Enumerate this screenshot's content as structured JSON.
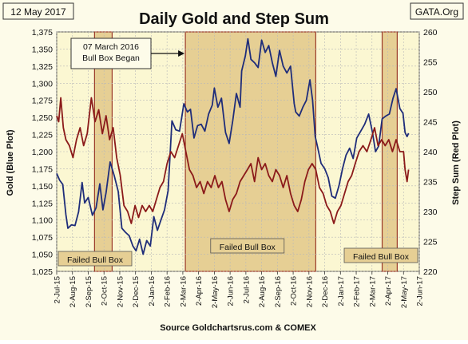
{
  "header": {
    "date": "12 May 2017",
    "title": "Daily Gold and Step Sum",
    "source_tag": "GATA.Org"
  },
  "footer": {
    "source": "Source Goldchartsrus.com & COMEX"
  },
  "colors": {
    "gold": "#1f2d7a",
    "step_sum": "#8b1a1a",
    "box_fill": "#e6cf94",
    "box_border": "#9b3a2a",
    "plot_bg": "#fbf7d2",
    "page_bg": "#fdfbe9"
  },
  "chart_data": {
    "type": "line",
    "title": "Daily Gold and Step Sum",
    "ylabel_left": "Gold (Blue Plot)",
    "ylabel_right": "Step Sum (Red Plot)",
    "ylim_left": [
      1025,
      1375
    ],
    "ylim_right": [
      220,
      260
    ],
    "yticks_left": [
      "1,025",
      "1,050",
      "1,075",
      "1,100",
      "1,125",
      "1,150",
      "1,175",
      "1,200",
      "1,225",
      "1,250",
      "1,275",
      "1,300",
      "1,325",
      "1,350",
      "1,375"
    ],
    "yticks_right": [
      "220",
      "225",
      "230",
      "235",
      "240",
      "245",
      "250",
      "255",
      "260"
    ],
    "xticks": [
      "2-Jul-15",
      "2-Aug-15",
      "2-Sep-15",
      "2-Oct-15",
      "2-Nov-15",
      "2-Dec-15",
      "2-Jan-16",
      "2-Feb-16",
      "2-Mar-16",
      "2-Apr-16",
      "2-May-16",
      "2-Jun-16",
      "2-Jul-16",
      "2-Aug-16",
      "2-Sep-16",
      "2-Oct-16",
      "2-Nov-16",
      "2-Dec-16",
      "2-Jan-17",
      "2-Feb-17",
      "2-Mar-17",
      "2-Apr-17",
      "2-May-17",
      "2-Jun-17"
    ],
    "grid": true,
    "boxes": [
      {
        "label": "Failed Bull Box",
        "start": "2015-09-14",
        "end": "2015-10-18"
      },
      {
        "label": "Failed Bull Box",
        "start": "2016-03-07",
        "end": "2016-11-15"
      },
      {
        "label": "Failed Bull Box",
        "start": "2017-03-22",
        "end": "2017-04-20"
      }
    ],
    "annotation": {
      "text_lines": [
        "07 March 2016",
        "Bull Box Began"
      ],
      "date": "2016-03-07"
    },
    "series": [
      {
        "name": "Gold",
        "axis": "left",
        "points": [
          [
            "2015-07-02",
            1168
          ],
          [
            "2015-07-08",
            1158
          ],
          [
            "2015-07-14",
            1152
          ],
          [
            "2015-07-20",
            1108
          ],
          [
            "2015-07-24",
            1088
          ],
          [
            "2015-07-31",
            1093
          ],
          [
            "2015-08-07",
            1092
          ],
          [
            "2015-08-14",
            1112
          ],
          [
            "2015-08-21",
            1155
          ],
          [
            "2015-08-26",
            1125
          ],
          [
            "2015-09-02",
            1133
          ],
          [
            "2015-09-10",
            1107
          ],
          [
            "2015-09-17",
            1118
          ],
          [
            "2015-09-24",
            1153
          ],
          [
            "2015-09-30",
            1115
          ],
          [
            "2015-10-06",
            1140
          ],
          [
            "2015-10-14",
            1185
          ],
          [
            "2015-10-22",
            1165
          ],
          [
            "2015-10-30",
            1142
          ],
          [
            "2015-11-06",
            1088
          ],
          [
            "2015-11-13",
            1082
          ],
          [
            "2015-11-20",
            1077
          ],
          [
            "2015-11-27",
            1062
          ],
          [
            "2015-12-03",
            1055
          ],
          [
            "2015-12-10",
            1072
          ],
          [
            "2015-12-17",
            1050
          ],
          [
            "2015-12-24",
            1070
          ],
          [
            "2015-12-31",
            1062
          ],
          [
            "2016-01-07",
            1105
          ],
          [
            "2016-01-14",
            1085
          ],
          [
            "2016-01-21",
            1100
          ],
          [
            "2016-01-28",
            1115
          ],
          [
            "2016-02-04",
            1143
          ],
          [
            "2016-02-11",
            1245
          ],
          [
            "2016-02-18",
            1232
          ],
          [
            "2016-02-25",
            1230
          ],
          [
            "2016-03-04",
            1270
          ],
          [
            "2016-03-11",
            1258
          ],
          [
            "2016-03-17",
            1262
          ],
          [
            "2016-03-24",
            1220
          ],
          [
            "2016-03-31",
            1238
          ],
          [
            "2016-04-07",
            1240
          ],
          [
            "2016-04-14",
            1230
          ],
          [
            "2016-04-21",
            1255
          ],
          [
            "2016-04-28",
            1268
          ],
          [
            "2016-05-02",
            1293
          ],
          [
            "2016-05-09",
            1265
          ],
          [
            "2016-05-16",
            1278
          ],
          [
            "2016-05-24",
            1228
          ],
          [
            "2016-05-31",
            1212
          ],
          [
            "2016-06-07",
            1245
          ],
          [
            "2016-06-14",
            1285
          ],
          [
            "2016-06-21",
            1265
          ],
          [
            "2016-06-24",
            1318
          ],
          [
            "2016-07-01",
            1340
          ],
          [
            "2016-07-06",
            1365
          ],
          [
            "2016-07-12",
            1335
          ],
          [
            "2016-07-19",
            1330
          ],
          [
            "2016-07-26",
            1323
          ],
          [
            "2016-08-02",
            1363
          ],
          [
            "2016-08-09",
            1345
          ],
          [
            "2016-08-16",
            1355
          ],
          [
            "2016-08-23",
            1330
          ],
          [
            "2016-08-30",
            1310
          ],
          [
            "2016-09-06",
            1348
          ],
          [
            "2016-09-13",
            1325
          ],
          [
            "2016-09-20",
            1315
          ],
          [
            "2016-09-27",
            1325
          ],
          [
            "2016-10-04",
            1270
          ],
          [
            "2016-10-07",
            1258
          ],
          [
            "2016-10-14",
            1252
          ],
          [
            "2016-10-21",
            1265
          ],
          [
            "2016-10-28",
            1275
          ],
          [
            "2016-11-04",
            1305
          ],
          [
            "2016-11-09",
            1275
          ],
          [
            "2016-11-14",
            1222
          ],
          [
            "2016-11-18",
            1208
          ],
          [
            "2016-11-25",
            1183
          ],
          [
            "2016-12-02",
            1175
          ],
          [
            "2016-12-09",
            1162
          ],
          [
            "2016-12-16",
            1135
          ],
          [
            "2016-12-23",
            1132
          ],
          [
            "2016-12-30",
            1150
          ],
          [
            "2017-01-06",
            1175
          ],
          [
            "2017-01-13",
            1195
          ],
          [
            "2017-01-20",
            1205
          ],
          [
            "2017-01-27",
            1190
          ],
          [
            "2017-02-03",
            1220
          ],
          [
            "2017-02-10",
            1230
          ],
          [
            "2017-02-17",
            1240
          ],
          [
            "2017-02-24",
            1255
          ],
          [
            "2017-03-03",
            1228
          ],
          [
            "2017-03-09",
            1200
          ],
          [
            "2017-03-15",
            1208
          ],
          [
            "2017-03-22",
            1248
          ],
          [
            "2017-03-29",
            1252
          ],
          [
            "2017-04-05",
            1255
          ],
          [
            "2017-04-12",
            1278
          ],
          [
            "2017-04-18",
            1292
          ],
          [
            "2017-04-25",
            1263
          ],
          [
            "2017-05-01",
            1256
          ],
          [
            "2017-05-05",
            1228
          ],
          [
            "2017-05-09",
            1222
          ],
          [
            "2017-05-12",
            1227
          ]
        ]
      },
      {
        "name": "Step Sum",
        "axis": "right",
        "points": [
          [
            "2015-07-02",
            246
          ],
          [
            "2015-07-06",
            245
          ],
          [
            "2015-07-10",
            249
          ],
          [
            "2015-07-15",
            244
          ],
          [
            "2015-07-20",
            242
          ],
          [
            "2015-07-27",
            241
          ],
          [
            "2015-08-03",
            239
          ],
          [
            "2015-08-10",
            242
          ],
          [
            "2015-08-17",
            244
          ],
          [
            "2015-08-24",
            241
          ],
          [
            "2015-08-31",
            243
          ],
          [
            "2015-09-08",
            249
          ],
          [
            "2015-09-15",
            245
          ],
          [
            "2015-09-22",
            247
          ],
          [
            "2015-09-29",
            243
          ],
          [
            "2015-10-06",
            246
          ],
          [
            "2015-10-13",
            242
          ],
          [
            "2015-10-20",
            244
          ],
          [
            "2015-10-27",
            239
          ],
          [
            "2015-11-03",
            236
          ],
          [
            "2015-11-10",
            231
          ],
          [
            "2015-11-17",
            230
          ],
          [
            "2015-11-24",
            228
          ],
          [
            "2015-12-01",
            231
          ],
          [
            "2015-12-08",
            229
          ],
          [
            "2015-12-15",
            231
          ],
          [
            "2015-12-22",
            230
          ],
          [
            "2015-12-29",
            231
          ],
          [
            "2016-01-05",
            230
          ],
          [
            "2016-01-12",
            232
          ],
          [
            "2016-01-19",
            234
          ],
          [
            "2016-01-26",
            235
          ],
          [
            "2016-02-02",
            238
          ],
          [
            "2016-02-09",
            240
          ],
          [
            "2016-02-16",
            239
          ],
          [
            "2016-02-23",
            241
          ],
          [
            "2016-03-01",
            243
          ],
          [
            "2016-03-08",
            240
          ],
          [
            "2016-03-15",
            237
          ],
          [
            "2016-03-22",
            236
          ],
          [
            "2016-03-29",
            234
          ],
          [
            "2016-04-05",
            235
          ],
          [
            "2016-04-12",
            233
          ],
          [
            "2016-04-19",
            235
          ],
          [
            "2016-04-26",
            234
          ],
          [
            "2016-05-03",
            236
          ],
          [
            "2016-05-10",
            234
          ],
          [
            "2016-05-17",
            235
          ],
          [
            "2016-05-24",
            232
          ],
          [
            "2016-05-31",
            230
          ],
          [
            "2016-06-07",
            232
          ],
          [
            "2016-06-14",
            233
          ],
          [
            "2016-06-21",
            235
          ],
          [
            "2016-06-28",
            236
          ],
          [
            "2016-07-05",
            237
          ],
          [
            "2016-07-12",
            238
          ],
          [
            "2016-07-19",
            235
          ],
          [
            "2016-07-26",
            239
          ],
          [
            "2016-08-02",
            237
          ],
          [
            "2016-08-09",
            238
          ],
          [
            "2016-08-16",
            236
          ],
          [
            "2016-08-23",
            235
          ],
          [
            "2016-08-30",
            237
          ],
          [
            "2016-09-06",
            236
          ],
          [
            "2016-09-13",
            234
          ],
          [
            "2016-09-20",
            236
          ],
          [
            "2016-09-27",
            233
          ],
          [
            "2016-10-04",
            231
          ],
          [
            "2016-10-11",
            230
          ],
          [
            "2016-10-18",
            232
          ],
          [
            "2016-10-25",
            235
          ],
          [
            "2016-11-01",
            237
          ],
          [
            "2016-11-08",
            238
          ],
          [
            "2016-11-15",
            237
          ],
          [
            "2016-11-22",
            234
          ],
          [
            "2016-11-29",
            233
          ],
          [
            "2016-12-06",
            231
          ],
          [
            "2016-12-13",
            230
          ],
          [
            "2016-12-20",
            228
          ],
          [
            "2016-12-27",
            230
          ],
          [
            "2017-01-03",
            231
          ],
          [
            "2017-01-10",
            233
          ],
          [
            "2017-01-17",
            235
          ],
          [
            "2017-01-24",
            236
          ],
          [
            "2017-01-31",
            238
          ],
          [
            "2017-02-07",
            240
          ],
          [
            "2017-02-14",
            241
          ],
          [
            "2017-02-21",
            240
          ],
          [
            "2017-02-28",
            242
          ],
          [
            "2017-03-07",
            244
          ],
          [
            "2017-03-14",
            241
          ],
          [
            "2017-03-21",
            242
          ],
          [
            "2017-03-28",
            241
          ],
          [
            "2017-04-04",
            242
          ],
          [
            "2017-04-11",
            240
          ],
          [
            "2017-04-18",
            242
          ],
          [
            "2017-04-25",
            240
          ],
          [
            "2017-05-02",
            240
          ],
          [
            "2017-05-05",
            237
          ],
          [
            "2017-05-09",
            235
          ],
          [
            "2017-05-12",
            237
          ]
        ]
      }
    ]
  }
}
